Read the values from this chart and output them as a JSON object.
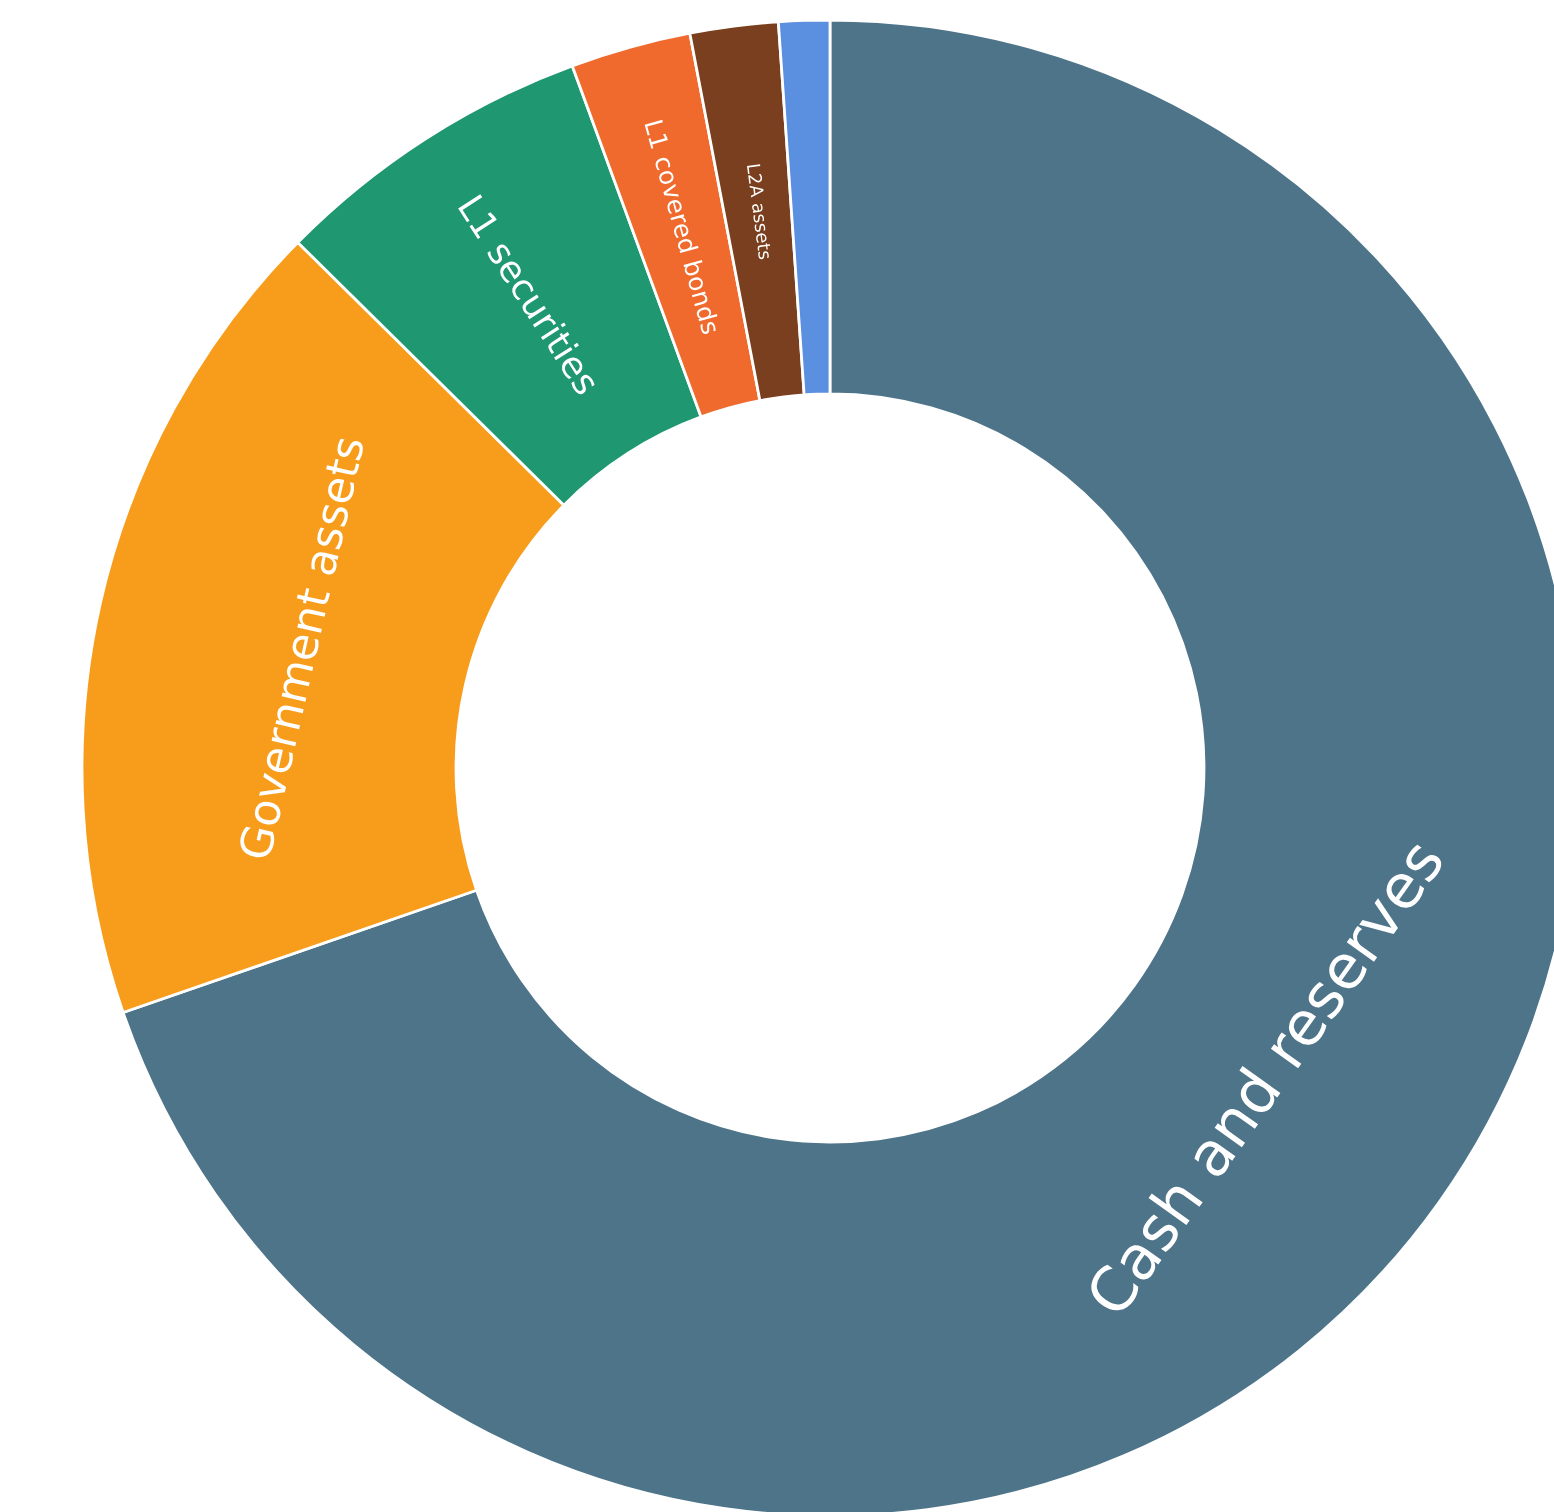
{
  "chart_data": {
    "type": "donut",
    "categories": [
      "Cash and reserves",
      "Government assets",
      "L1 securities",
      "L1 covered bonds",
      "L2A assets",
      null
    ],
    "values": [
      69.7,
      17.7,
      7.0,
      2.6,
      1.9,
      1.1
    ],
    "colors": [
      "#4e7489",
      "#f89c1c",
      "#1f9770",
      "#f06a2e",
      "#7a3f1e",
      "#5b8fe0"
    ]
  }
}
